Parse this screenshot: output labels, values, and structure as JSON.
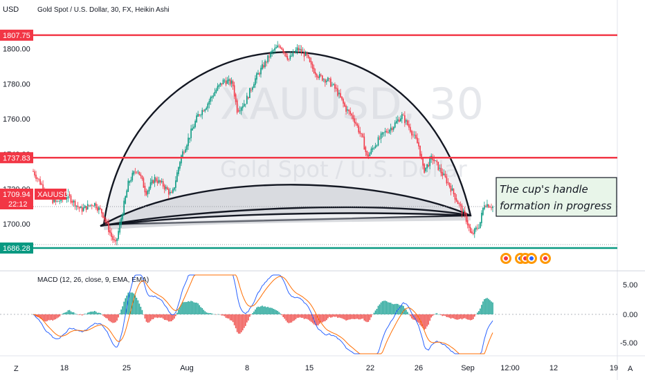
{
  "header": {
    "currency": "USD",
    "title": "Gold Spot / U.S. Dollar, 30, FX, Heikin Ashi"
  },
  "watermark": {
    "symbol": "XAUUSD, 30",
    "name": "Gold Spot / U.S. Dollar"
  },
  "annotation": {
    "line1": "The cup's handle",
    "line2": "formation in progress"
  },
  "price_tags": {
    "current_symbol": "XAUUSD",
    "current_price": "1709.94",
    "countdown": "22:12",
    "level_top": "1807.75",
    "level_mid": "1737.83",
    "level_bottom": "1686.28"
  },
  "macd": {
    "label": "MACD (12, 26, close, 9, EMA, EMA)",
    "ticks": [
      "5.00",
      "0.00",
      "-5.00"
    ]
  },
  "bottom_bar": {
    "left_button": "Z",
    "right_button": "A"
  },
  "colors": {
    "level_red": "#f23645",
    "level_green": "#089981",
    "tag_current": "#f23645",
    "candle_up": "#089981",
    "candle_down": "#f23645",
    "macd_line": "#2962ff",
    "signal_line": "#ff6d00"
  },
  "chart_data": {
    "type": "candlestick",
    "y_ticks": [
      1800,
      1780,
      1760,
      1740,
      1720,
      1700
    ],
    "ylim": [
      1678,
      1816
    ],
    "x_tick_labels": [
      "18",
      "25",
      "Aug",
      "8",
      "15",
      "22",
      "26",
      "Sep",
      "12:00",
      "12",
      "19"
    ],
    "horizontal_levels": [
      1807.75,
      1737.83,
      1686.28
    ],
    "current_price": 1709.94,
    "price_path": [
      [
        0,
        1730
      ],
      [
        3,
        1718
      ],
      [
        5,
        1712
      ],
      [
        8,
        1716
      ],
      [
        11,
        1708
      ],
      [
        14,
        1712
      ],
      [
        16,
        1706
      ],
      [
        18,
        1693
      ],
      [
        19,
        1688
      ],
      [
        20,
        1700
      ],
      [
        22,
        1724
      ],
      [
        24,
        1732
      ],
      [
        26,
        1718
      ],
      [
        28,
        1726
      ],
      [
        30,
        1722
      ],
      [
        32,
        1716
      ],
      [
        34,
        1738
      ],
      [
        36,
        1750
      ],
      [
        38,
        1762
      ],
      [
        40,
        1768
      ],
      [
        42,
        1776
      ],
      [
        44,
        1782
      ],
      [
        46,
        1780
      ],
      [
        47,
        1765
      ],
      [
        49,
        1770
      ],
      [
        51,
        1782
      ],
      [
        53,
        1790
      ],
      [
        55,
        1798
      ],
      [
        57,
        1802
      ],
      [
        59,
        1794
      ],
      [
        61,
        1800
      ],
      [
        63,
        1796
      ],
      [
        64,
        1790
      ],
      [
        66,
        1784
      ],
      [
        68,
        1782
      ],
      [
        70,
        1776
      ],
      [
        72,
        1766
      ],
      [
        74,
        1760
      ],
      [
        76,
        1748
      ],
      [
        77,
        1738
      ],
      [
        79,
        1746
      ],
      [
        81,
        1752
      ],
      [
        83,
        1756
      ],
      [
        85,
        1762
      ],
      [
        87,
        1754
      ],
      [
        89,
        1744
      ],
      [
        90,
        1730
      ],
      [
        92,
        1738
      ],
      [
        94,
        1730
      ],
      [
        96,
        1722
      ],
      [
        98,
        1712
      ],
      [
        100,
        1702
      ],
      [
        101,
        1693
      ],
      [
        103,
        1700
      ],
      [
        104,
        1712
      ],
      [
        106,
        1710
      ]
    ],
    "macd_ylim": [
      -7,
      8
    ],
    "macd_ticks": [
      5,
      0,
      -5
    ]
  }
}
